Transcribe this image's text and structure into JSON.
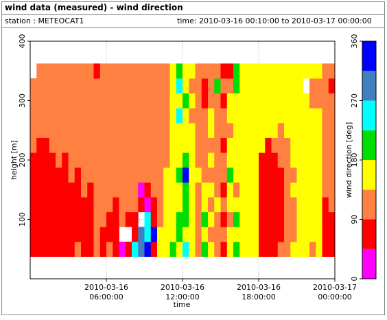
{
  "header": {
    "title": "wind data (measured) - wind direction",
    "station": "station : METEOCAT1",
    "time": "time: 2010-03-16 00:10:00 to 2010-03-17 00:00:00"
  },
  "chart_data": {
    "type": "heatmap",
    "xlabel": "time",
    "ylabel": "height [m]",
    "xlim": [
      "2010-03-16 00:00:00",
      "2010-03-17 00:00:00"
    ],
    "xticks": [
      "2010-03-16 06:00:00",
      "2010-03-16 12:00:00",
      "2010-03-16 18:00:00",
      "2010-03-17 00:00:00"
    ],
    "ylim": [
      0,
      400
    ],
    "yticks": [
      100,
      200,
      300,
      400
    ],
    "grid": true,
    "x": [
      "2010-03-16 00:15:00",
      "2010-03-16 00:45:00",
      "2010-03-16 01:15:00",
      "2010-03-16 01:45:00",
      "2010-03-16 02:15:00",
      "2010-03-16 02:45:00",
      "2010-03-16 03:15:00",
      "2010-03-16 03:45:00",
      "2010-03-16 04:15:00",
      "2010-03-16 04:45:00",
      "2010-03-16 05:15:00",
      "2010-03-16 05:45:00",
      "2010-03-16 06:15:00",
      "2010-03-16 06:45:00",
      "2010-03-16 07:15:00",
      "2010-03-16 07:45:00",
      "2010-03-16 08:15:00",
      "2010-03-16 08:45:00",
      "2010-03-16 09:15:00",
      "2010-03-16 09:45:00",
      "2010-03-16 10:15:00",
      "2010-03-16 10:45:00",
      "2010-03-16 11:15:00",
      "2010-03-16 11:45:00",
      "2010-03-16 12:15:00",
      "2010-03-16 12:45:00",
      "2010-03-16 13:15:00",
      "2010-03-16 13:45:00",
      "2010-03-16 14:15:00",
      "2010-03-16 14:45:00",
      "2010-03-16 15:15:00",
      "2010-03-16 15:45:00",
      "2010-03-16 16:15:00",
      "2010-03-16 16:45:00",
      "2010-03-16 17:15:00",
      "2010-03-16 17:45:00",
      "2010-03-16 18:15:00",
      "2010-03-16 18:45:00",
      "2010-03-16 19:15:00",
      "2010-03-16 19:45:00",
      "2010-03-16 20:15:00",
      "2010-03-16 20:45:00",
      "2010-03-16 21:15:00",
      "2010-03-16 21:45:00",
      "2010-03-16 22:15:00",
      "2010-03-16 22:45:00",
      "2010-03-16 23:15:00",
      "2010-03-16 23:45:00"
    ],
    "y": [
      50,
      75,
      100,
      125,
      150,
      175,
      200,
      225,
      250,
      275,
      300,
      325,
      350
    ],
    "values": [
      [
        70,
        70,
        70,
        70,
        70,
        70,
        70,
        110,
        110,
        110,
        110,
        110,
        null
      ],
      [
        70,
        70,
        70,
        70,
        70,
        70,
        70,
        70,
        110,
        110,
        110,
        110,
        110
      ],
      [
        70,
        70,
        70,
        70,
        70,
        70,
        70,
        70,
        110,
        110,
        110,
        110,
        110
      ],
      [
        70,
        70,
        70,
        70,
        70,
        70,
        70,
        110,
        110,
        110,
        110,
        110,
        110
      ],
      [
        70,
        70,
        70,
        70,
        70,
        70,
        110,
        110,
        110,
        110,
        110,
        110,
        110
      ],
      [
        70,
        70,
        70,
        70,
        70,
        70,
        70,
        110,
        110,
        110,
        110,
        110,
        110
      ],
      [
        70,
        70,
        70,
        70,
        70,
        110,
        110,
        110,
        110,
        110,
        110,
        110,
        110
      ],
      [
        110,
        70,
        70,
        70,
        70,
        70,
        110,
        110,
        110,
        110,
        110,
        110,
        110
      ],
      [
        70,
        70,
        70,
        70,
        110,
        110,
        110,
        110,
        110,
        110,
        110,
        110,
        110
      ],
      [
        70,
        70,
        70,
        70,
        70,
        110,
        110,
        110,
        110,
        110,
        110,
        110,
        110
      ],
      [
        110,
        110,
        110,
        110,
        110,
        110,
        110,
        110,
        110,
        110,
        110,
        110,
        70
      ],
      [
        70,
        70,
        110,
        110,
        110,
        110,
        110,
        110,
        110,
        110,
        110,
        110,
        110
      ],
      [
        110,
        70,
        70,
        110,
        110,
        110,
        110,
        110,
        110,
        110,
        110,
        110,
        110
      ],
      [
        70,
        70,
        70,
        70,
        110,
        110,
        110,
        110,
        110,
        110,
        110,
        110,
        110
      ],
      [
        20,
        null,
        110,
        110,
        110,
        110,
        110,
        110,
        110,
        110,
        110,
        110,
        110
      ],
      [
        70,
        null,
        70,
        110,
        110,
        110,
        110,
        110,
        110,
        110,
        110,
        110,
        110
      ],
      [
        245,
        70,
        70,
        110,
        110,
        110,
        110,
        110,
        110,
        110,
        110,
        110,
        110
      ],
      [
        290,
        290,
        null,
        70,
        20,
        110,
        110,
        110,
        110,
        110,
        110,
        110,
        110
      ],
      [
        335,
        245,
        245,
        20,
        70,
        110,
        110,
        110,
        110,
        110,
        110,
        110,
        110
      ],
      [
        70,
        335,
        70,
        70,
        110,
        110,
        110,
        110,
        110,
        110,
        110,
        110,
        110
      ],
      [
        160,
        160,
        110,
        110,
        110,
        110,
        110,
        110,
        110,
        110,
        110,
        110,
        110
      ],
      [
        160,
        160,
        160,
        160,
        160,
        160,
        110,
        110,
        110,
        110,
        110,
        110,
        110
      ],
      [
        200,
        160,
        160,
        160,
        160,
        160,
        160,
        160,
        160,
        160,
        160,
        160,
        160
      ],
      [
        160,
        200,
        200,
        160,
        160,
        200,
        160,
        160,
        160,
        245,
        160,
        245,
        200
      ],
      [
        245,
        160,
        200,
        200,
        200,
        335,
        200,
        160,
        160,
        160,
        200,
        160,
        160
      ],
      [
        160,
        160,
        160,
        160,
        160,
        160,
        160,
        160,
        160,
        110,
        160,
        110,
        160
      ],
      [
        110,
        110,
        110,
        110,
        110,
        160,
        110,
        110,
        110,
        110,
        110,
        110,
        110
      ],
      [
        200,
        160,
        200,
        160,
        160,
        110,
        110,
        110,
        110,
        110,
        70,
        70,
        110
      ],
      [
        160,
        110,
        160,
        110,
        160,
        110,
        160,
        110,
        160,
        160,
        110,
        110,
        110
      ],
      [
        110,
        110,
        110,
        160,
        110,
        110,
        110,
        110,
        110,
        110,
        110,
        200,
        110
      ],
      [
        70,
        110,
        70,
        110,
        70,
        110,
        110,
        70,
        110,
        110,
        70,
        110,
        70
      ],
      [
        160,
        160,
        110,
        160,
        160,
        200,
        160,
        160,
        110,
        160,
        160,
        110,
        70
      ],
      [
        200,
        160,
        200,
        160,
        110,
        160,
        160,
        160,
        160,
        160,
        160,
        200,
        200
      ],
      [
        160,
        160,
        160,
        160,
        160,
        160,
        160,
        160,
        160,
        160,
        160,
        160,
        160
      ],
      [
        160,
        160,
        160,
        160,
        160,
        160,
        160,
        160,
        160,
        160,
        160,
        160,
        160
      ],
      [
        160,
        160,
        160,
        160,
        160,
        160,
        160,
        160,
        160,
        160,
        160,
        160,
        160
      ],
      [
        70,
        70,
        70,
        70,
        70,
        70,
        70,
        160,
        160,
        160,
        160,
        160,
        160
      ],
      [
        70,
        70,
        70,
        70,
        70,
        70,
        70,
        70,
        160,
        160,
        160,
        160,
        160
      ],
      [
        70,
        70,
        70,
        70,
        70,
        70,
        70,
        110,
        160,
        160,
        160,
        160,
        160
      ],
      [
        110,
        70,
        70,
        70,
        70,
        70,
        110,
        110,
        110,
        160,
        160,
        160,
        160
      ],
      [
        110,
        110,
        110,
        110,
        110,
        110,
        110,
        110,
        160,
        160,
        160,
        160,
        160
      ],
      [
        160,
        110,
        110,
        110,
        160,
        110,
        160,
        160,
        160,
        160,
        160,
        160,
        160
      ],
      [
        160,
        160,
        160,
        160,
        160,
        160,
        160,
        160,
        160,
        160,
        160,
        160,
        160
      ],
      [
        160,
        160,
        160,
        160,
        160,
        160,
        160,
        160,
        160,
        160,
        160,
        null,
        160
      ],
      [
        110,
        160,
        160,
        160,
        160,
        160,
        160,
        160,
        160,
        160,
        110,
        110,
        160
      ],
      [
        160,
        160,
        160,
        160,
        160,
        160,
        160,
        160,
        160,
        160,
        110,
        110,
        160
      ],
      [
        70,
        70,
        70,
        70,
        110,
        110,
        110,
        110,
        110,
        110,
        110,
        110,
        110
      ],
      [
        70,
        70,
        70,
        110,
        110,
        110,
        110,
        110,
        110,
        110,
        110,
        70,
        110
      ]
    ],
    "colorbar": {
      "label": "wind direction [deg]",
      "lim": [
        0,
        360
      ],
      "ticks": [
        0,
        90,
        180,
        270,
        360
      ],
      "bins": [
        0,
        45,
        90,
        135,
        180,
        225,
        270,
        315,
        360
      ],
      "colors": [
        "#ff00ff",
        "#ff0000",
        "#ff8040",
        "#ffff00",
        "#00dd00",
        "#00ffff",
        "#4080c0",
        "#0000ff"
      ]
    }
  }
}
